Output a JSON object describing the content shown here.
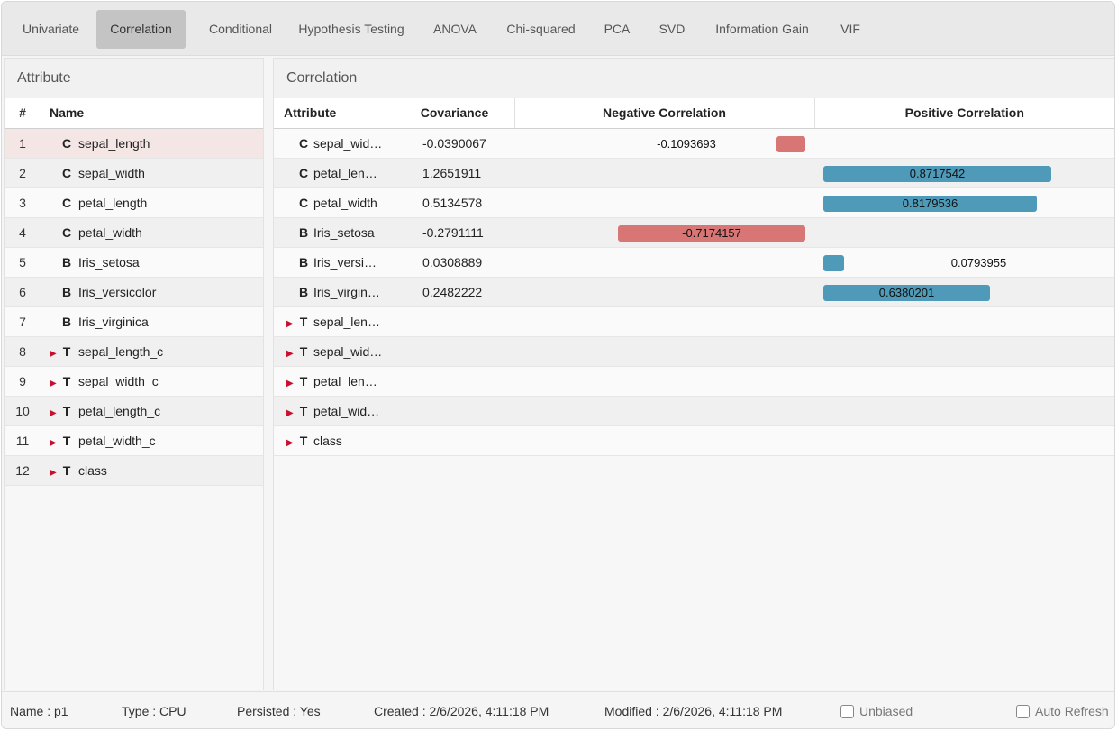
{
  "tabs": [
    "Univariate",
    "Correlation",
    "Conditional",
    "Hypothesis Testing",
    "ANOVA",
    "Chi-squared",
    "PCA",
    "SVD",
    "Information Gain",
    "VIF"
  ],
  "active_tab": "Correlation",
  "left_panel": {
    "title": "Attribute",
    "columns": [
      "#",
      "Name"
    ],
    "rows": [
      {
        "index": "1",
        "type": "C",
        "name": "sepal_length",
        "expandable": false
      },
      {
        "index": "2",
        "type": "C",
        "name": "sepal_width",
        "expandable": false
      },
      {
        "index": "3",
        "type": "C",
        "name": "petal_length",
        "expandable": false
      },
      {
        "index": "4",
        "type": "C",
        "name": "petal_width",
        "expandable": false
      },
      {
        "index": "5",
        "type": "B",
        "name": "Iris_setosa",
        "expandable": false
      },
      {
        "index": "6",
        "type": "B",
        "name": "Iris_versicolor",
        "expandable": false
      },
      {
        "index": "7",
        "type": "B",
        "name": "Iris_virginica",
        "expandable": false
      },
      {
        "index": "8",
        "type": "T",
        "name": "sepal_length_c",
        "expandable": true
      },
      {
        "index": "9",
        "type": "T",
        "name": "sepal_width_c",
        "expandable": true
      },
      {
        "index": "10",
        "type": "T",
        "name": "petal_length_c",
        "expandable": true
      },
      {
        "index": "11",
        "type": "T",
        "name": "petal_width_c",
        "expandable": true
      },
      {
        "index": "12",
        "type": "T",
        "name": "class",
        "expandable": true
      }
    ]
  },
  "right_panel": {
    "title": "Correlation",
    "columns": [
      "Attribute",
      "Covariance",
      "Negative Correlation",
      "Positive Correlation"
    ],
    "rows": [
      {
        "type": "C",
        "name": "sepal_wid…",
        "covariance": "-0.0390067",
        "correlation": -0.1093693,
        "correlation_label": "-0.1093693",
        "expandable": false
      },
      {
        "type": "C",
        "name": "petal_len…",
        "covariance": "1.2651911",
        "correlation": 0.8717542,
        "correlation_label": "0.8717542",
        "expandable": false
      },
      {
        "type": "C",
        "name": "petal_width",
        "covariance": "0.5134578",
        "correlation": 0.8179536,
        "correlation_label": "0.8179536",
        "expandable": false
      },
      {
        "type": "B",
        "name": "Iris_setosa",
        "covariance": "-0.2791111",
        "correlation": -0.7174157,
        "correlation_label": "-0.7174157",
        "expandable": false
      },
      {
        "type": "B",
        "name": "Iris_versi…",
        "covariance": "0.0308889",
        "correlation": 0.0793955,
        "correlation_label": "0.0793955",
        "expandable": false
      },
      {
        "type": "B",
        "name": "Iris_virgin…",
        "covariance": "0.2482222",
        "correlation": 0.6380201,
        "correlation_label": "0.6380201",
        "expandable": false
      },
      {
        "type": "T",
        "name": "sepal_len…",
        "covariance": "",
        "correlation": null,
        "correlation_label": "",
        "expandable": true
      },
      {
        "type": "T",
        "name": "sepal_wid…",
        "covariance": "",
        "correlation": null,
        "correlation_label": "",
        "expandable": true
      },
      {
        "type": "T",
        "name": "petal_len…",
        "covariance": "",
        "correlation": null,
        "correlation_label": "",
        "expandable": true
      },
      {
        "type": "T",
        "name": "petal_wid…",
        "covariance": "",
        "correlation": null,
        "correlation_label": "",
        "expandable": true
      },
      {
        "type": "T",
        "name": "class",
        "covariance": "",
        "correlation": null,
        "correlation_label": "",
        "expandable": true
      }
    ]
  },
  "footer": {
    "name": "Name : p1",
    "type": "Type : CPU",
    "persisted": "Persisted : Yes",
    "created": "Created : 2/6/2026, 4:11:18 PM",
    "modified": "Modified : 2/6/2026, 4:11:18 PM",
    "unbiased_label": "Unbiased",
    "unbiased_checked": false,
    "auto_refresh_label": "Auto Refresh",
    "auto_refresh_checked": false
  },
  "colors": {
    "negative_bar": "#d87676",
    "positive_bar": "#4e9ab8",
    "expand_arrow": "#c8102e",
    "selected_row": "#f5e6e6"
  },
  "icons": {
    "expand": "triangle-right-icon",
    "checkbox": "checkbox-icon"
  }
}
